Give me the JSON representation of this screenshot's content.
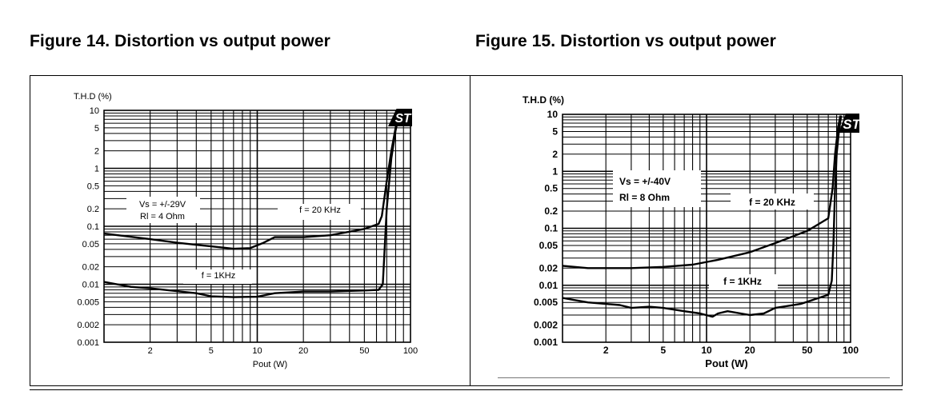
{
  "titles": {
    "left": "Figure 14.   Distortion vs output power",
    "right": "Figure 15.   Distortion vs output power"
  },
  "colors": {
    "ink": "#000000",
    "background": "#ffffff"
  },
  "chart_data": [
    {
      "type": "line",
      "title": "Figure 14.   Distortion vs output power",
      "ylabel": "T.H.D (%)",
      "xlabel": "Pout (W)",
      "xscale": "log",
      "yscale": "log",
      "xlim": [
        1,
        100
      ],
      "ylim": [
        0.001,
        10
      ],
      "grid": true,
      "x_ticks": [
        "2",
        "5",
        "10",
        "20",
        "50",
        "100"
      ],
      "x_tick_values": [
        2,
        5,
        10,
        20,
        50,
        100
      ],
      "y_ticks": [
        "10",
        "5",
        "2",
        "1",
        "0.5",
        "0.2",
        "0.1",
        "0.05",
        "0.02",
        "0.01",
        "0.005",
        "0.002",
        "0.001"
      ],
      "y_tick_values": [
        10,
        5,
        2,
        1,
        0.5,
        0.2,
        0.1,
        0.05,
        0.02,
        0.01,
        0.005,
        0.002,
        0.001
      ],
      "annotations": [
        "Vs = +/-29V",
        "Rl = 4 Ohm",
        "f = 20 KHz",
        "f = 1KHz"
      ],
      "logo": "ST",
      "series": [
        {
          "name": "f = 20 KHz",
          "points": [
            [
              1,
              0.075
            ],
            [
              2,
              0.06
            ],
            [
              3,
              0.052
            ],
            [
              5,
              0.045
            ],
            [
              7,
              0.041
            ],
            [
              9,
              0.042
            ],
            [
              11,
              0.052
            ],
            [
              13,
              0.065
            ],
            [
              20,
              0.065
            ],
            [
              30,
              0.07
            ],
            [
              50,
              0.09
            ],
            [
              62,
              0.11
            ],
            [
              65,
              0.15
            ],
            [
              70,
              0.6
            ],
            [
              75,
              2.0
            ],
            [
              80,
              5.0
            ],
            [
              85,
              9.5
            ]
          ]
        },
        {
          "name": "f = 1KHz",
          "points": [
            [
              1,
              0.011
            ],
            [
              1.5,
              0.009
            ],
            [
              2,
              0.0085
            ],
            [
              4,
              0.007
            ],
            [
              5,
              0.0062
            ],
            [
              7,
              0.006
            ],
            [
              10,
              0.0061
            ],
            [
              13,
              0.007
            ],
            [
              20,
              0.0075
            ],
            [
              30,
              0.0075
            ],
            [
              50,
              0.0078
            ],
            [
              62,
              0.008
            ],
            [
              66,
              0.01
            ],
            [
              70,
              0.2
            ],
            [
              75,
              1.5
            ],
            [
              80,
              4.5
            ],
            [
              85,
              9.5
            ]
          ]
        }
      ]
    },
    {
      "type": "line",
      "title": "Figure 15.   Distortion vs output power",
      "ylabel": "T.H.D (%)",
      "xlabel": "Pout (W)",
      "xscale": "log",
      "yscale": "log",
      "xlim": [
        1,
        100
      ],
      "ylim": [
        0.001,
        10
      ],
      "grid": true,
      "x_ticks": [
        "2",
        "5",
        "10",
        "20",
        "50",
        "100"
      ],
      "x_tick_values": [
        2,
        5,
        10,
        20,
        50,
        100
      ],
      "y_ticks": [
        "10",
        "5",
        "2",
        "1",
        "0.5",
        "0.2",
        "0.1",
        "0.05",
        "0.02",
        "0.01",
        "0.005",
        "0.002",
        "0.001"
      ],
      "y_tick_values": [
        10,
        5,
        2,
        1,
        0.5,
        0.2,
        0.1,
        0.05,
        0.02,
        0.01,
        0.005,
        0.002,
        0.001
      ],
      "annotations": [
        "Vs = +/-40V",
        "Rl = 8 Ohm",
        "f = 20 KHz",
        "f = 1KHz"
      ],
      "logo": "ST",
      "series": [
        {
          "name": "f = 20 KHz",
          "points": [
            [
              1,
              0.022
            ],
            [
              1.5,
              0.02
            ],
            [
              3,
              0.02
            ],
            [
              5,
              0.021
            ],
            [
              8,
              0.023
            ],
            [
              12,
              0.028
            ],
            [
              20,
              0.038
            ],
            [
              30,
              0.055
            ],
            [
              50,
              0.09
            ],
            [
              70,
              0.15
            ],
            [
              75,
              0.5
            ],
            [
              78,
              2.0
            ],
            [
              82,
              6.0
            ],
            [
              85,
              9.5
            ]
          ]
        },
        {
          "name": "f = 1KHz",
          "points": [
            [
              1,
              0.006
            ],
            [
              1.5,
              0.005
            ],
            [
              2.5,
              0.0045
            ],
            [
              3,
              0.004
            ],
            [
              4,
              0.0042
            ],
            [
              5,
              0.004
            ],
            [
              7,
              0.0035
            ],
            [
              9,
              0.0032
            ],
            [
              11,
              0.0028
            ],
            [
              12,
              0.0032
            ],
            [
              14,
              0.0035
            ],
            [
              20,
              0.003
            ],
            [
              25,
              0.0032
            ],
            [
              30,
              0.004
            ],
            [
              45,
              0.0047
            ],
            [
              70,
              0.0068
            ],
            [
              74,
              0.012
            ],
            [
              76,
              0.05
            ],
            [
              78,
              0.5
            ],
            [
              80,
              2.0
            ],
            [
              83,
              5.0
            ],
            [
              86,
              9.5
            ]
          ]
        }
      ]
    }
  ]
}
